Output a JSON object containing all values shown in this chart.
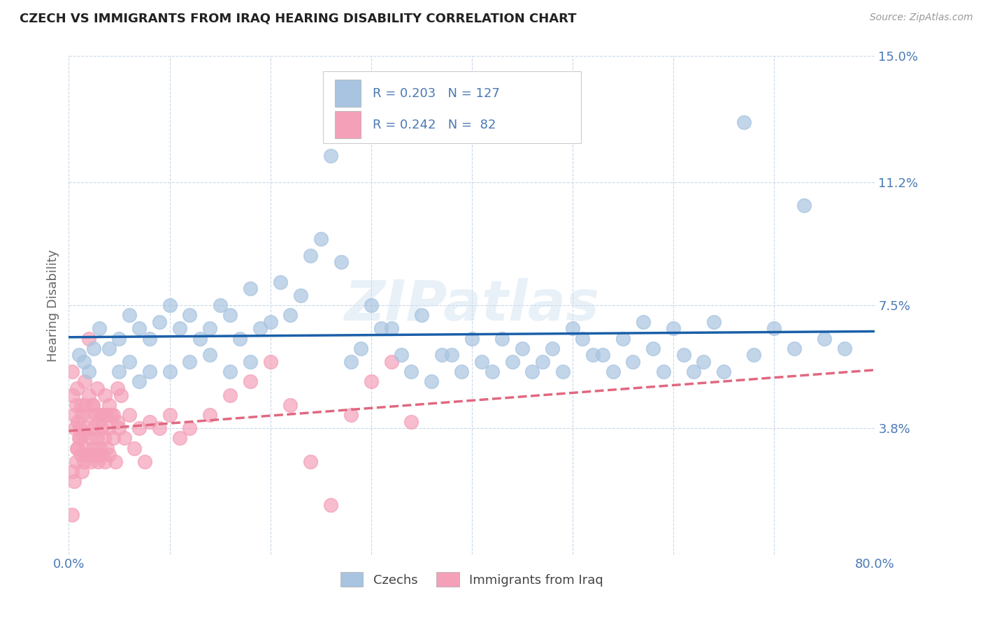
{
  "title": "CZECH VS IMMIGRANTS FROM IRAQ HEARING DISABILITY CORRELATION CHART",
  "source": "Source: ZipAtlas.com",
  "ylabel": "Hearing Disability",
  "xlim": [
    0.0,
    0.8
  ],
  "ylim": [
    0.0,
    0.15
  ],
  "xticks": [
    0.0,
    0.1,
    0.2,
    0.3,
    0.4,
    0.5,
    0.6,
    0.7,
    0.8
  ],
  "xticklabels": [
    "0.0%",
    "",
    "",
    "",
    "",
    "",
    "",
    "",
    "80.0%"
  ],
  "yticks": [
    0.0,
    0.038,
    0.075,
    0.112,
    0.15
  ],
  "yticklabels": [
    "",
    "3.8%",
    "7.5%",
    "11.2%",
    "15.0%"
  ],
  "czech_R": 0.203,
  "czech_N": 127,
  "iraq_R": 0.242,
  "iraq_N": 82,
  "czech_color": "#a8c4e0",
  "iraq_color": "#f4a0b8",
  "czech_line_color": "#1a5fa8",
  "iraq_line_color": "#e06880",
  "legend_label_czech": "Czechs",
  "legend_label_iraq": "Immigrants from Iraq",
  "watermark": "ZIPatlas",
  "background_color": "#ffffff",
  "grid_color": "#c8d8e8",
  "title_color": "#222222",
  "axis_label_color": "#4a7ab5",
  "czech_scatter_x": [
    0.21,
    0.22,
    0.24,
    0.25,
    0.27,
    0.3,
    0.32,
    0.35,
    0.38,
    0.4,
    0.42,
    0.43,
    0.44,
    0.46,
    0.48,
    0.5,
    0.52,
    0.55,
    0.57,
    0.6,
    0.62,
    0.64,
    0.7,
    0.72,
    0.15,
    0.16,
    0.17,
    0.18,
    0.19,
    0.2,
    0.09,
    0.1,
    0.11,
    0.12,
    0.13,
    0.14,
    0.06,
    0.07,
    0.08,
    0.03,
    0.04,
    0.05,
    0.01,
    0.015,
    0.02,
    0.025,
    0.28,
    0.29,
    0.31,
    0.33,
    0.34,
    0.36,
    0.37,
    0.39,
    0.41,
    0.45,
    0.47,
    0.49,
    0.51,
    0.53,
    0.54,
    0.56,
    0.58,
    0.59,
    0.61,
    0.63,
    0.65,
    0.68,
    0.75,
    0.77,
    0.23,
    0.26,
    0.67,
    0.73,
    0.08,
    0.1,
    0.12,
    0.14,
    0.16,
    0.18,
    0.05,
    0.06,
    0.07
  ],
  "czech_scatter_y": [
    0.082,
    0.072,
    0.09,
    0.095,
    0.088,
    0.075,
    0.068,
    0.072,
    0.06,
    0.065,
    0.055,
    0.065,
    0.058,
    0.055,
    0.062,
    0.068,
    0.06,
    0.065,
    0.07,
    0.068,
    0.055,
    0.07,
    0.068,
    0.062,
    0.075,
    0.072,
    0.065,
    0.08,
    0.068,
    0.07,
    0.07,
    0.075,
    0.068,
    0.072,
    0.065,
    0.068,
    0.072,
    0.068,
    0.065,
    0.068,
    0.062,
    0.065,
    0.06,
    0.058,
    0.055,
    0.062,
    0.058,
    0.062,
    0.068,
    0.06,
    0.055,
    0.052,
    0.06,
    0.055,
    0.058,
    0.062,
    0.058,
    0.055,
    0.065,
    0.06,
    0.055,
    0.058,
    0.062,
    0.055,
    0.06,
    0.058,
    0.055,
    0.06,
    0.065,
    0.062,
    0.078,
    0.12,
    0.13,
    0.105,
    0.055,
    0.055,
    0.058,
    0.06,
    0.055,
    0.058,
    0.055,
    0.058,
    0.052
  ],
  "iraq_scatter_x": [
    0.005,
    0.006,
    0.007,
    0.008,
    0.009,
    0.01,
    0.011,
    0.012,
    0.013,
    0.014,
    0.015,
    0.016,
    0.017,
    0.018,
    0.019,
    0.02,
    0.021,
    0.022,
    0.023,
    0.024,
    0.025,
    0.026,
    0.027,
    0.028,
    0.029,
    0.03,
    0.031,
    0.032,
    0.033,
    0.034,
    0.035,
    0.036,
    0.037,
    0.038,
    0.039,
    0.04,
    0.042,
    0.044,
    0.046,
    0.048,
    0.05,
    0.055,
    0.06,
    0.065,
    0.07,
    0.075,
    0.08,
    0.09,
    0.1,
    0.11,
    0.12,
    0.14,
    0.16,
    0.18,
    0.2,
    0.22,
    0.24,
    0.26,
    0.28,
    0.3,
    0.32,
    0.34,
    0.003,
    0.004,
    0.008,
    0.012,
    0.016,
    0.02,
    0.024,
    0.028,
    0.032,
    0.036,
    0.04,
    0.044,
    0.048,
    0.052,
    0.003,
    0.005,
    0.007,
    0.009,
    0.011,
    0.013,
    0.02,
    0.003
  ],
  "iraq_scatter_y": [
    0.042,
    0.038,
    0.045,
    0.032,
    0.04,
    0.035,
    0.038,
    0.03,
    0.042,
    0.036,
    0.028,
    0.045,
    0.032,
    0.038,
    0.03,
    0.042,
    0.035,
    0.028,
    0.045,
    0.032,
    0.038,
    0.03,
    0.042,
    0.035,
    0.028,
    0.04,
    0.032,
    0.038,
    0.03,
    0.042,
    0.035,
    0.028,
    0.042,
    0.032,
    0.038,
    0.03,
    0.042,
    0.035,
    0.028,
    0.04,
    0.038,
    0.035,
    0.042,
    0.032,
    0.038,
    0.028,
    0.04,
    0.038,
    0.042,
    0.035,
    0.038,
    0.042,
    0.048,
    0.052,
    0.058,
    0.045,
    0.028,
    0.015,
    0.042,
    0.052,
    0.058,
    0.04,
    0.055,
    0.048,
    0.05,
    0.045,
    0.052,
    0.048,
    0.045,
    0.05,
    0.042,
    0.048,
    0.045,
    0.042,
    0.05,
    0.048,
    0.025,
    0.022,
    0.028,
    0.032,
    0.035,
    0.025,
    0.065,
    0.012
  ]
}
